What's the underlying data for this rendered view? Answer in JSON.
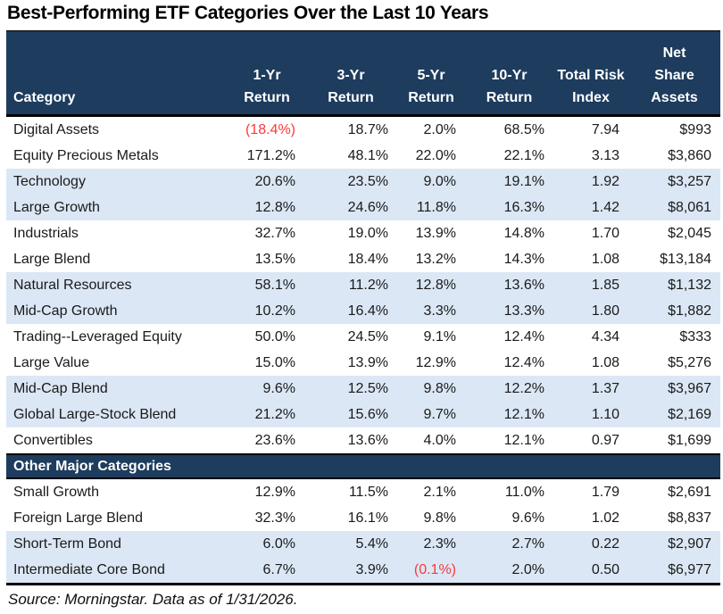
{
  "title": "Best-Performing ETF Categories Over the Last 10 Years",
  "source_note": "Source: Morningstar. Data as of 1/31/2026.",
  "colors": {
    "header_navy": "#1d3c5e",
    "row_band_blue": "#dbe7f5",
    "negative_red": "#ff3838",
    "body_text": "#1a1a1a"
  },
  "chart_data": {
    "type": "table",
    "title": "Best-Performing ETF Categories Over the Last 10 Years",
    "columns": [
      {
        "key": "category",
        "label_lines": [
          "Category"
        ]
      },
      {
        "key": "return_1yr",
        "label_lines": [
          "1-Yr",
          "Return"
        ]
      },
      {
        "key": "return_3yr",
        "label_lines": [
          "3-Yr",
          "Return"
        ]
      },
      {
        "key": "return_5yr",
        "label_lines": [
          "5-Yr",
          "Return"
        ]
      },
      {
        "key": "return_10yr",
        "label_lines": [
          "10-Yr",
          "Return"
        ]
      },
      {
        "key": "total_risk_index",
        "label_lines": [
          "Total Risk",
          "Index"
        ]
      },
      {
        "key": "net_share_assets",
        "label_lines": [
          "Net",
          "Share",
          "Assets"
        ]
      }
    ],
    "sections": [
      {
        "header": null,
        "rows": [
          [
            "Digital Assets",
            "(18.4%)",
            "18.7%",
            "2.0%",
            "68.5%",
            "7.94",
            "$993"
          ],
          [
            "Equity Precious Metals",
            "171.2%",
            "48.1%",
            "22.0%",
            "22.1%",
            "3.13",
            "$3,860"
          ],
          [
            "Technology",
            "20.6%",
            "23.5%",
            "9.0%",
            "19.1%",
            "1.92",
            "$3,257"
          ],
          [
            "Large Growth",
            "12.8%",
            "24.6%",
            "11.8%",
            "16.3%",
            "1.42",
            "$8,061"
          ],
          [
            "Industrials",
            "32.7%",
            "19.0%",
            "13.9%",
            "14.8%",
            "1.70",
            "$2,045"
          ],
          [
            "Large Blend",
            "13.5%",
            "18.4%",
            "13.2%",
            "14.3%",
            "1.08",
            "$13,184"
          ],
          [
            "Natural Resources",
            "58.1%",
            "11.2%",
            "12.8%",
            "13.6%",
            "1.85",
            "$1,132"
          ],
          [
            "Mid-Cap Growth",
            "10.2%",
            "16.4%",
            "3.3%",
            "13.3%",
            "1.80",
            "$1,882"
          ],
          [
            "Trading--Leveraged Equity",
            "50.0%",
            "24.5%",
            "9.1%",
            "12.4%",
            "4.34",
            "$333"
          ],
          [
            "Large Value",
            "15.0%",
            "13.9%",
            "12.9%",
            "12.4%",
            "1.08",
            "$5,276"
          ],
          [
            "Mid-Cap Blend",
            "9.6%",
            "12.5%",
            "9.8%",
            "12.2%",
            "1.37",
            "$3,967"
          ],
          [
            "Global Large-Stock Blend",
            "21.2%",
            "15.6%",
            "9.7%",
            "12.1%",
            "1.10",
            "$2,169"
          ],
          [
            "Convertibles",
            "23.6%",
            "13.6%",
            "4.0%",
            "12.1%",
            "0.97",
            "$1,699"
          ]
        ]
      },
      {
        "header": "Other Major Categories",
        "rows": [
          [
            "Small Growth",
            "12.9%",
            "11.5%",
            "2.1%",
            "11.0%",
            "1.79",
            "$2,691"
          ],
          [
            "Foreign Large Blend",
            "32.3%",
            "16.1%",
            "9.8%",
            "9.6%",
            "1.02",
            "$8,837"
          ],
          [
            "Short-Term Bond",
            "6.0%",
            "5.4%",
            "2.3%",
            "2.7%",
            "0.22",
            "$2,907"
          ],
          [
            "Intermediate Core Bond",
            "6.7%",
            "3.9%",
            "(0.1%)",
            "2.0%",
            "0.50",
            "$6,977"
          ]
        ]
      }
    ],
    "negative_format": "parentheses-red",
    "shading_pattern": "rows banded in pairs: 2 white, 2 light-blue, repeating; restarts after section header"
  }
}
